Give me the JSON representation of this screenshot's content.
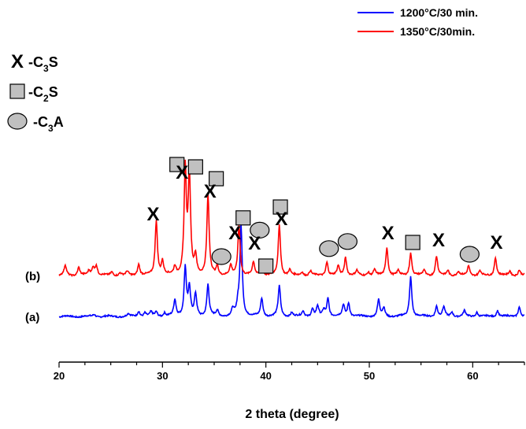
{
  "chart_data": {
    "type": "line",
    "xlabel": "2 theta (degree)",
    "ylabel": "",
    "xlim": [
      20,
      65
    ],
    "xticks": [
      20,
      30,
      40,
      50,
      60
    ],
    "grid": false,
    "legend_placement": "top-right",
    "series": [
      {
        "name": "1200°C/30 min.",
        "curve_label": "(a)",
        "color": "#0000ff",
        "peaks": [
          [
            23.4,
            5
          ],
          [
            26.7,
            5
          ],
          [
            27.7,
            12
          ],
          [
            28.3,
            8
          ],
          [
            28.9,
            9
          ],
          [
            29.4,
            10
          ],
          [
            30.2,
            8
          ],
          [
            31.2,
            35
          ],
          [
            32.2,
            108
          ],
          [
            32.6,
            60
          ],
          [
            33.2,
            48
          ],
          [
            34.4,
            70
          ],
          [
            35.3,
            12
          ],
          [
            36.8,
            15
          ],
          [
            37.3,
            22
          ],
          [
            37.6,
            200
          ],
          [
            39.6,
            40
          ],
          [
            41.3,
            66
          ],
          [
            42.5,
            8
          ],
          [
            43.6,
            12
          ],
          [
            44.5,
            16
          ],
          [
            45.0,
            22
          ],
          [
            45.6,
            14
          ],
          [
            46.0,
            40
          ],
          [
            47.5,
            25
          ],
          [
            48.0,
            30
          ],
          [
            50.9,
            36
          ],
          [
            51.4,
            18
          ],
          [
            54.0,
            88
          ],
          [
            56.5,
            23
          ],
          [
            57.2,
            20
          ],
          [
            58.0,
            10
          ],
          [
            59.2,
            12
          ],
          [
            60.4,
            10
          ],
          [
            62.4,
            14
          ],
          [
            64.5,
            22
          ]
        ]
      },
      {
        "name": "1350°C/30min.",
        "curve_label": "(b)",
        "color": "#ff0000",
        "peaks": [
          [
            20.6,
            22
          ],
          [
            21.9,
            18
          ],
          [
            22.9,
            10
          ],
          [
            23.3,
            18
          ],
          [
            23.6,
            22
          ],
          [
            25.1,
            8
          ],
          [
            25.9,
            6
          ],
          [
            26.6,
            8
          ],
          [
            27.7,
            25
          ],
          [
            29.4,
            120
          ],
          [
            30.0,
            30
          ],
          [
            31.2,
            18
          ],
          [
            32.2,
            230
          ],
          [
            32.6,
            220
          ],
          [
            33.2,
            40
          ],
          [
            34.4,
            175
          ],
          [
            35.3,
            20
          ],
          [
            36.6,
            20
          ],
          [
            37.4,
            110
          ],
          [
            38.8,
            28
          ],
          [
            39.6,
            20
          ],
          [
            41.3,
            110
          ],
          [
            42.3,
            12
          ],
          [
            43.5,
            8
          ],
          [
            44.3,
            10
          ],
          [
            45.9,
            30
          ],
          [
            47.0,
            20
          ],
          [
            47.7,
            40
          ],
          [
            48.8,
            10
          ],
          [
            49.9,
            8
          ],
          [
            50.5,
            12
          ],
          [
            51.7,
            62
          ],
          [
            52.8,
            10
          ],
          [
            54.0,
            50
          ],
          [
            55.3,
            12
          ],
          [
            56.5,
            42
          ],
          [
            57.6,
            12
          ],
          [
            58.6,
            8
          ],
          [
            59.6,
            22
          ],
          [
            60.7,
            10
          ],
          [
            62.2,
            40
          ],
          [
            63.6,
            10
          ],
          [
            64.5,
            12
          ]
        ]
      }
    ],
    "phase_legend": [
      {
        "symbol": "X",
        "prefix": "-C",
        "sub": "3",
        "suffix": "S"
      },
      {
        "symbol": "square",
        "prefix": "-C",
        "sub": "2",
        "suffix": "S"
      },
      {
        "symbol": "circle",
        "prefix": "-C",
        "sub": "3",
        "suffix": "A"
      }
    ],
    "annotations": [
      {
        "symbol": "square",
        "x": 31.4,
        "y": 235
      },
      {
        "symbol": "square",
        "x": 33.2,
        "y": 230
      },
      {
        "symbol": "X",
        "x": 31.9,
        "y": 218
      },
      {
        "symbol": "square",
        "x": 35.2,
        "y": 205
      },
      {
        "symbol": "X",
        "x": 34.6,
        "y": 178
      },
      {
        "symbol": "X",
        "x": 29.1,
        "y": 130
      },
      {
        "symbol": "square",
        "x": 37.8,
        "y": 122
      },
      {
        "symbol": "square",
        "x": 41.4,
        "y": 145
      },
      {
        "symbol": "X",
        "x": 41.5,
        "y": 120
      },
      {
        "symbol": "X",
        "x": 37.0,
        "y": 90
      },
      {
        "symbol": "circle",
        "x": 39.4,
        "y": 96
      },
      {
        "symbol": "X",
        "x": 38.9,
        "y": 68
      },
      {
        "symbol": "circle",
        "x": 35.7,
        "y": 40
      },
      {
        "symbol": "circle",
        "x": 47.9,
        "y": 72
      },
      {
        "symbol": "circle",
        "x": 46.1,
        "y": 57
      },
      {
        "symbol": "X",
        "x": 51.8,
        "y": 90
      },
      {
        "symbol": "square",
        "x": 54.2,
        "y": 70
      },
      {
        "symbol": "X",
        "x": 56.7,
        "y": 75
      },
      {
        "symbol": "circle",
        "x": 59.7,
        "y": 45
      },
      {
        "symbol": "X",
        "x": 62.3,
        "y": 70
      },
      {
        "symbol": "square",
        "x": 40.0,
        "y": 20
      }
    ]
  }
}
